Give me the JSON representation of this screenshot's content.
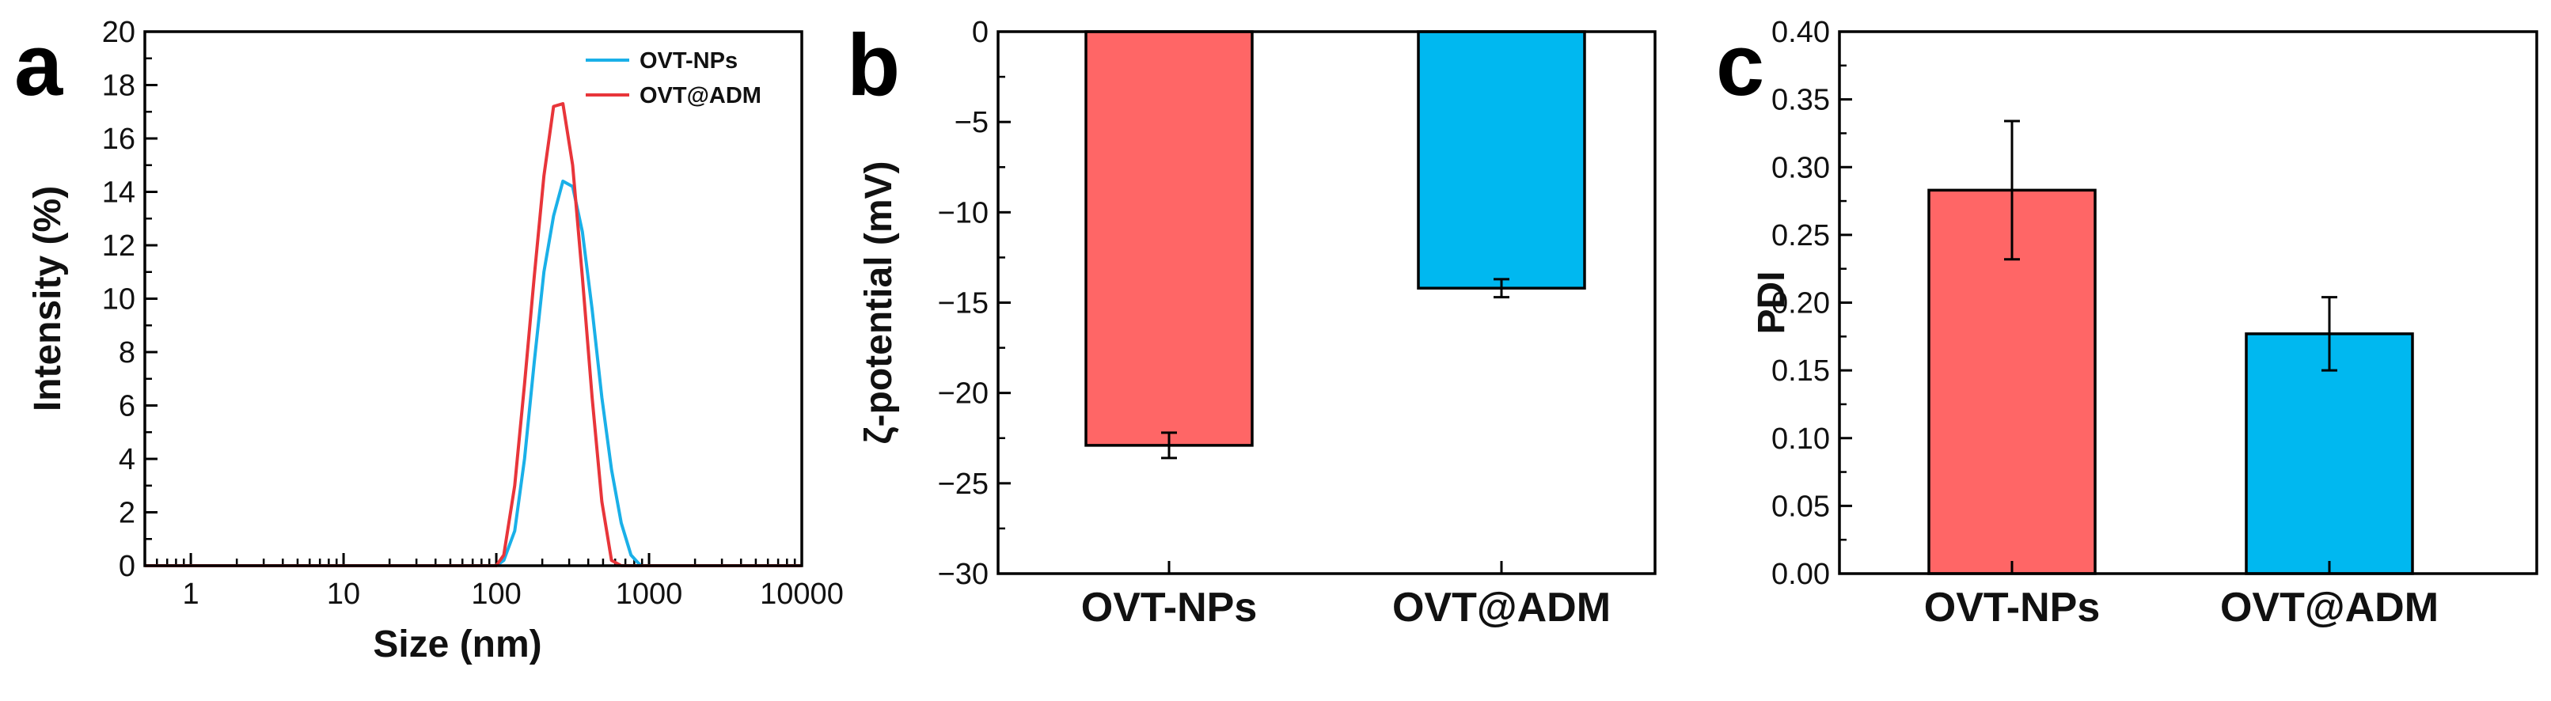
{
  "chart_data": [
    {
      "panel": "a",
      "type": "line",
      "xlabel": "Size (nm)",
      "ylabel": "Intensity (%)",
      "x_scale": "log",
      "xlim": [
        0.5,
        10000
      ],
      "ylim": [
        0,
        20
      ],
      "x_ticks": [
        "1",
        "10",
        "100",
        "1000",
        "10000"
      ],
      "y_ticks": [
        "0",
        "2",
        "4",
        "6",
        "8",
        "10",
        "12",
        "14",
        "16",
        "18",
        "20"
      ],
      "legend_position": "top-right",
      "series": [
        {
          "name": "OVT-NPs",
          "color": "#1AB0E8",
          "x": [
            0.5,
            100,
            112,
            132,
            153,
            177,
            205,
            237,
            273,
            316,
            366,
            424,
            491,
            568,
            658,
            762,
            882,
            1000,
            10000
          ],
          "y": [
            0,
            0,
            0.2,
            1.3,
            4.0,
            7.6,
            11.0,
            13.1,
            14.4,
            14.2,
            12.5,
            9.6,
            6.3,
            3.6,
            1.6,
            0.4,
            0,
            0,
            0
          ]
        },
        {
          "name": "OVT@ADM",
          "color": "#E8353A",
          "x": [
            0.5,
            100,
            112,
            132,
            153,
            177,
            205,
            237,
            273,
            316,
            366,
            424,
            491,
            568,
            658,
            1000,
            10000
          ],
          "y": [
            0,
            0,
            0.4,
            3.0,
            6.8,
            10.8,
            14.6,
            17.2,
            17.3,
            15.0,
            10.8,
            6.3,
            2.4,
            0.2,
            0,
            0,
            0
          ]
        }
      ]
    },
    {
      "panel": "b",
      "type": "bar",
      "ylabel": "ζ-potential (mV)",
      "categories": [
        "OVT-NPs",
        "OVT@ADM"
      ],
      "values": [
        -22.9,
        -14.2
      ],
      "errors": [
        0.7,
        0.5
      ],
      "colors": [
        "#FF6666",
        "#00B8F0"
      ],
      "ylim": [
        -30,
        0
      ],
      "y_ticks": [
        "-30",
        "-25",
        "-20",
        "-15",
        "-10",
        "-5",
        "0"
      ]
    },
    {
      "panel": "c",
      "type": "bar",
      "ylabel": "PDI",
      "categories": [
        "OVT-NPs",
        "OVT@ADM"
      ],
      "values": [
        0.283,
        0.177
      ],
      "errors": [
        0.051,
        0.027
      ],
      "colors": [
        "#FF6666",
        "#00B8F0"
      ],
      "ylim": [
        0,
        0.4
      ],
      "y_ticks": [
        "0.00",
        "0.05",
        "0.10",
        "0.15",
        "0.20",
        "0.25",
        "0.30",
        "0.35",
        "0.40"
      ]
    }
  ]
}
